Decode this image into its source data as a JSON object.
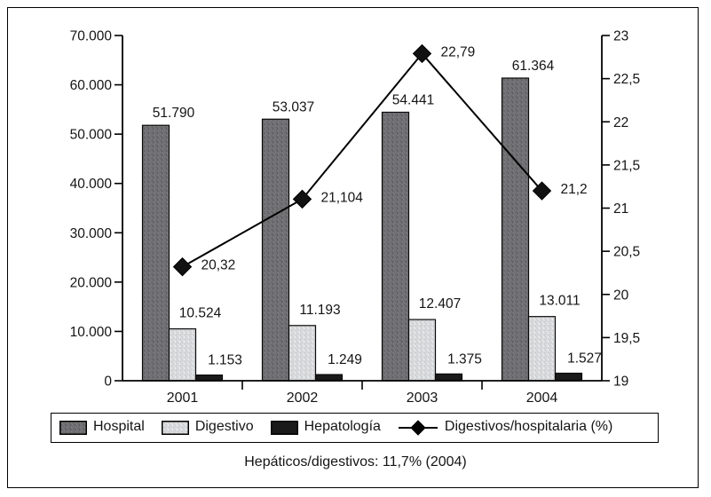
{
  "figure": {
    "footer": "Hepáticos/digestivos: 11,7% (2004)"
  },
  "chart_data": {
    "type": "bar",
    "subtype": "grouped-bars-with-line-overlay",
    "categories": [
      "2001",
      "2002",
      "2003",
      "2004"
    ],
    "series": [
      {
        "name": "Hospital",
        "kind": "bar",
        "axis": "left",
        "color": "#6f6f72",
        "values": [
          51790,
          53037,
          54441,
          61364
        ],
        "labels": [
          "51.790",
          "53.037",
          "54.441",
          "61.364"
        ]
      },
      {
        "name": "Digestivo",
        "kind": "bar",
        "axis": "left",
        "color": "#d9dadc",
        "values": [
          10524,
          11193,
          12407,
          13011
        ],
        "labels": [
          "10.524",
          "11.193",
          "12.407",
          "13.011"
        ]
      },
      {
        "name": "Hepatología",
        "kind": "bar",
        "axis": "left",
        "color": "#1a1a1a",
        "values": [
          1153,
          1249,
          1375,
          1527
        ],
        "labels": [
          "1.153",
          "1.249",
          "1.375",
          "1.527"
        ]
      },
      {
        "name": "Digestivos/hospitalaria (%)",
        "kind": "line",
        "axis": "right",
        "color": "#000000",
        "marker": "diamond",
        "values": [
          20.32,
          21.104,
          22.79,
          21.2
        ],
        "labels": [
          "20,32",
          "21,104",
          "22,79",
          "21,2"
        ]
      }
    ],
    "left_axis": {
      "min": 0,
      "max": 70000,
      "step": 10000,
      "tick_labels": [
        "0",
        "10.000",
        "20.000",
        "30.000",
        "40.000",
        "50.000",
        "60.000",
        "70.000"
      ]
    },
    "right_axis": {
      "min": 19,
      "max": 23,
      "step": 0.5,
      "tick_labels": [
        "19",
        "19,5",
        "20",
        "20,5",
        "21",
        "21,5",
        "22",
        "22,5",
        "23"
      ]
    },
    "grid": false,
    "legend_position": "bottom",
    "title": ""
  }
}
